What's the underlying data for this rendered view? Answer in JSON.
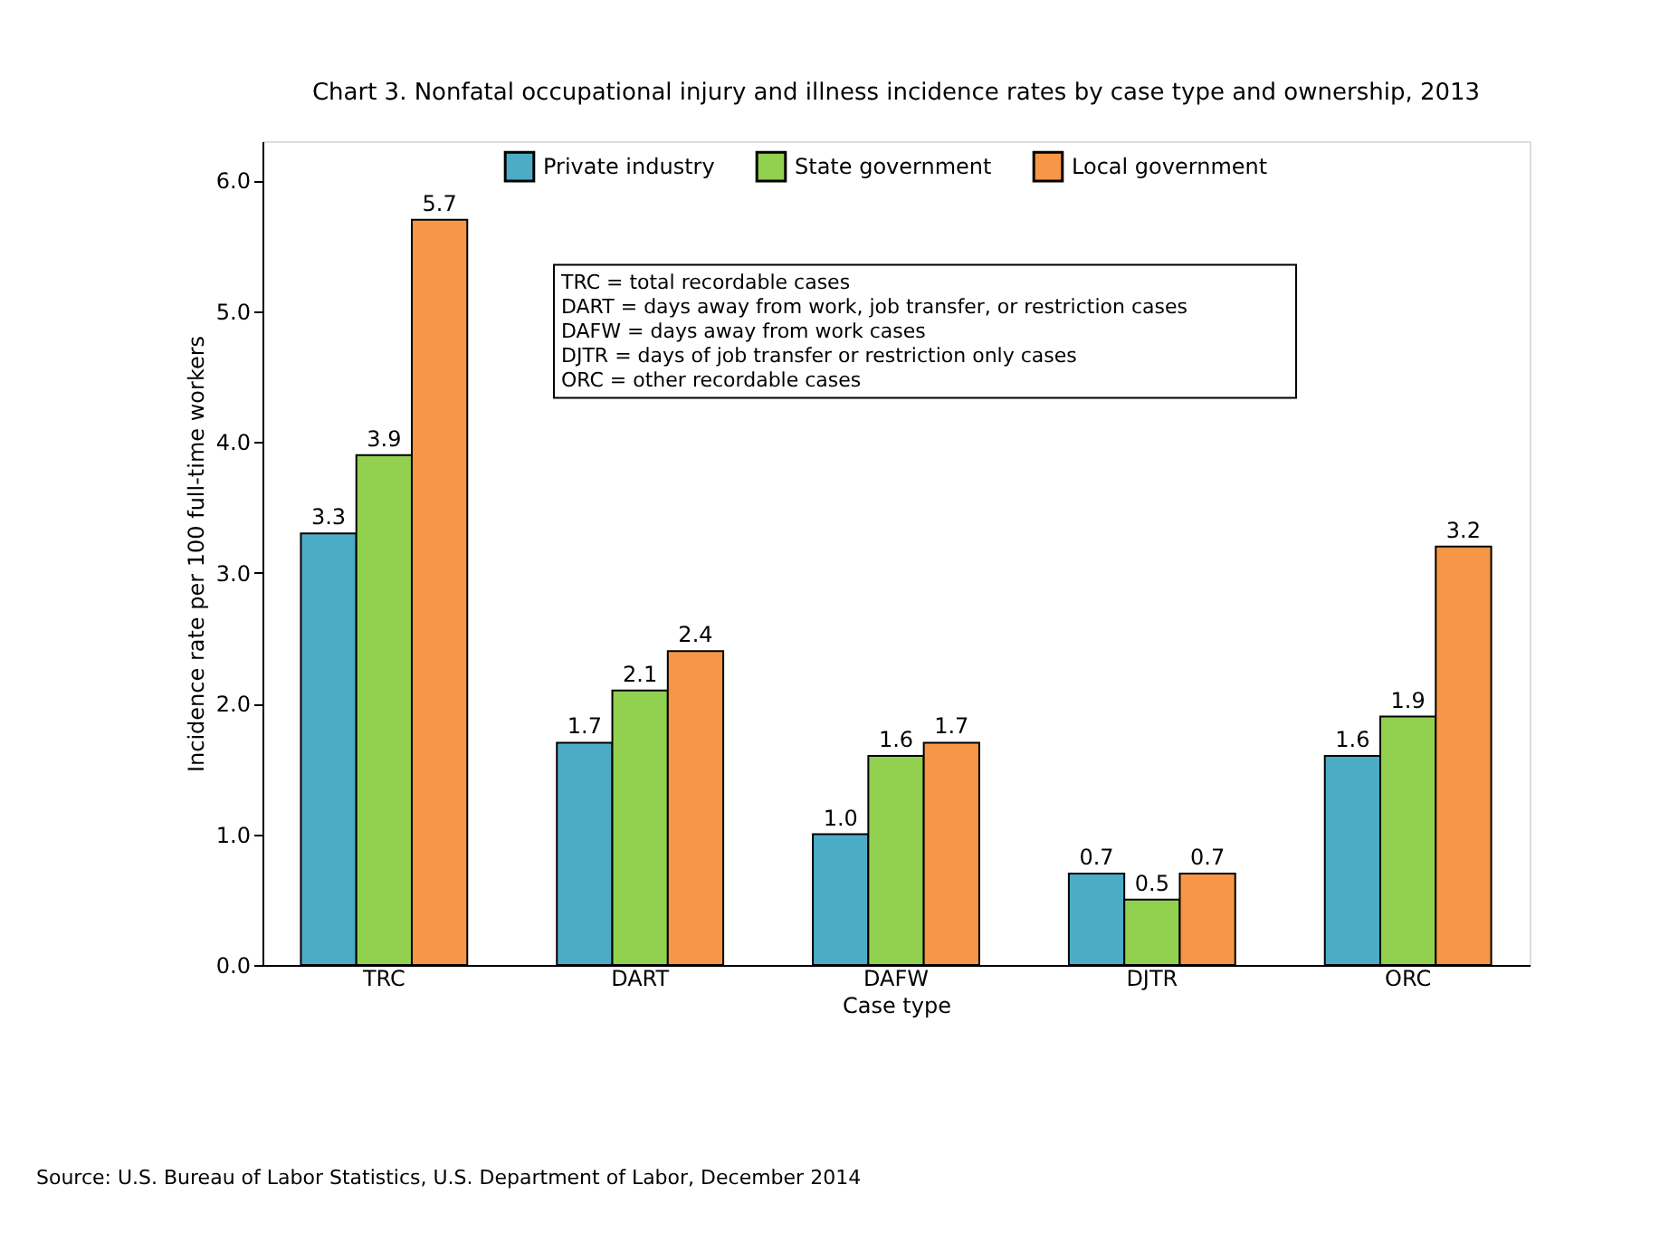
{
  "chart_data": {
    "type": "bar",
    "title": "Chart 3. Nonfatal occupational injury and illness incidence rates by case type and ownership, 2013",
    "xlabel": "Case type",
    "ylabel": "Incidence rate per 100 full-time workers",
    "categories": [
      "TRC",
      "DART",
      "DAFW",
      "DJTR",
      "ORC"
    ],
    "series": [
      {
        "name": "Private industry",
        "color": "#4bacc6",
        "values": [
          3.3,
          1.7,
          1.0,
          0.7,
          1.6
        ],
        "value_labels": [
          "3.3",
          "1.7",
          "1.0",
          "0.7",
          "1.6"
        ]
      },
      {
        "name": "State government",
        "color": "#92d050",
        "values": [
          3.9,
          2.1,
          1.6,
          0.5,
          1.9
        ],
        "value_labels": [
          "3.9",
          "2.1",
          "1.6",
          "0.5",
          "1.9"
        ]
      },
      {
        "name": "Local government",
        "color": "#f79646",
        "values": [
          5.7,
          2.4,
          1.7,
          0.7,
          3.2
        ],
        "value_labels": [
          "5.7",
          "2.4",
          "1.7",
          "0.7",
          "3.2"
        ]
      }
    ],
    "ylim": [
      0,
      6.3
    ],
    "yticks": [
      {
        "value": 0,
        "label": "0.0"
      },
      {
        "value": 1,
        "label": "1.0"
      },
      {
        "value": 2,
        "label": "2.0"
      },
      {
        "value": 3,
        "label": "3.0"
      },
      {
        "value": 4,
        "label": "4.0"
      },
      {
        "value": 5,
        "label": "5.0"
      },
      {
        "value": 6,
        "label": "6.0"
      }
    ],
    "grid": false,
    "legend": "top",
    "annotations": [
      "TRC = total recordable cases",
      "DART = days away from work, job transfer, or restriction cases",
      "DAFW = days away from work cases",
      "DJTR = days of job transfer or restriction only cases",
      "ORC = other recordable cases",
      "Source: U.S. Bureau of Labor Statistics, U.S. Department of Labor, December 2014"
    ]
  }
}
